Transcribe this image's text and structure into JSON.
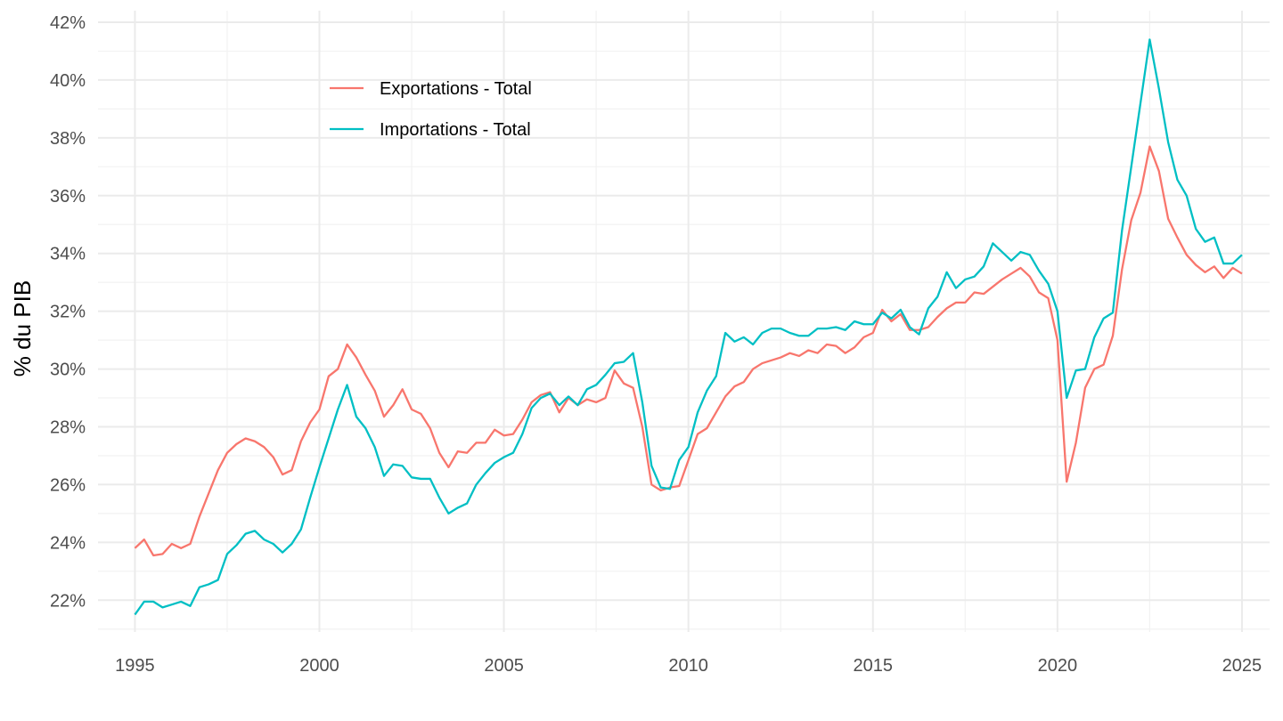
{
  "chart_data": {
    "type": "line",
    "title": "",
    "xlabel": "",
    "ylabel": "% du PIB",
    "xlim": [
      1994.0,
      2025.75
    ],
    "ylim": [
      20.9,
      42.4
    ],
    "x_ticks": [
      1995,
      2000,
      2005,
      2010,
      2015,
      2020,
      2025
    ],
    "x_tick_labels": [
      "1995",
      "2000",
      "2005",
      "2010",
      "2015",
      "2020",
      "2025"
    ],
    "y_ticks": [
      22,
      24,
      26,
      28,
      30,
      32,
      34,
      36,
      38,
      40,
      42
    ],
    "y_tick_labels": [
      "22%",
      "24%",
      "26%",
      "28%",
      "30%",
      "32%",
      "34%",
      "36%",
      "38%",
      "40%",
      "42%"
    ],
    "grid": true,
    "legend_position": "top-left inside",
    "x": [
      1995.0,
      1995.25,
      1995.5,
      1995.75,
      1996.0,
      1996.25,
      1996.5,
      1996.75,
      1997.0,
      1997.25,
      1997.5,
      1997.75,
      1998.0,
      1998.25,
      1998.5,
      1998.75,
      1999.0,
      1999.25,
      1999.5,
      1999.75,
      2000.0,
      2000.25,
      2000.5,
      2000.75,
      2001.0,
      2001.25,
      2001.5,
      2001.75,
      2002.0,
      2002.25,
      2002.5,
      2002.75,
      2003.0,
      2003.25,
      2003.5,
      2003.75,
      2004.0,
      2004.25,
      2004.5,
      2004.75,
      2005.0,
      2005.25,
      2005.5,
      2005.75,
      2006.0,
      2006.25,
      2006.5,
      2006.75,
      2007.0,
      2007.25,
      2007.5,
      2007.75,
      2008.0,
      2008.25,
      2008.5,
      2008.75,
      2009.0,
      2009.25,
      2009.5,
      2009.75,
      2010.0,
      2010.25,
      2010.5,
      2010.75,
      2011.0,
      2011.25,
      2011.5,
      2011.75,
      2012.0,
      2012.25,
      2012.5,
      2012.75,
      2013.0,
      2013.25,
      2013.5,
      2013.75,
      2014.0,
      2014.25,
      2014.5,
      2014.75,
      2015.0,
      2015.25,
      2015.5,
      2015.75,
      2016.0,
      2016.25,
      2016.5,
      2016.75,
      2017.0,
      2017.25,
      2017.5,
      2017.75,
      2018.0,
      2018.25,
      2018.5,
      2018.75,
      2019.0,
      2019.25,
      2019.5,
      2019.75,
      2020.0,
      2020.25,
      2020.5,
      2020.75,
      2021.0,
      2021.25,
      2021.5,
      2021.75,
      2022.0,
      2022.25,
      2022.5,
      2022.75,
      2023.0,
      2023.25,
      2023.5,
      2023.75,
      2024.0,
      2024.25,
      2024.5,
      2024.75,
      2025.0
    ],
    "series": [
      {
        "name": "Exportations - Total",
        "color": "#f8766d",
        "values": [
          23.8,
          24.1,
          23.55,
          23.6,
          23.95,
          23.8,
          23.95,
          24.9,
          25.7,
          26.5,
          27.1,
          27.4,
          27.6,
          27.5,
          27.3,
          26.95,
          26.35,
          26.5,
          27.5,
          28.15,
          28.6,
          29.75,
          30.0,
          30.85,
          30.4,
          29.8,
          29.25,
          28.35,
          28.75,
          29.3,
          28.6,
          28.45,
          27.95,
          27.1,
          26.6,
          27.15,
          27.1,
          27.45,
          27.45,
          27.9,
          27.7,
          27.75,
          28.25,
          28.85,
          29.1,
          29.2,
          28.5,
          29.0,
          28.75,
          28.95,
          28.85,
          29.0,
          29.95,
          29.5,
          29.35,
          28.0,
          26.0,
          25.8,
          25.9,
          25.95,
          26.85,
          27.75,
          27.95,
          28.5,
          29.05,
          29.4,
          29.55,
          30.0,
          30.2,
          30.3,
          30.4,
          30.55,
          30.45,
          30.65,
          30.55,
          30.85,
          30.8,
          30.55,
          30.75,
          31.1,
          31.25,
          32.05,
          31.65,
          31.9,
          31.35,
          31.35,
          31.45,
          31.8,
          32.1,
          32.3,
          32.3,
          32.65,
          32.6,
          32.85,
          33.1,
          33.3,
          33.5,
          33.2,
          32.65,
          32.45,
          31.0,
          26.1,
          27.45,
          29.35,
          30.0,
          30.15,
          31.15,
          33.45,
          35.15,
          36.1,
          37.7,
          36.85,
          35.2,
          34.55,
          33.95,
          33.6,
          33.35,
          33.55,
          33.15,
          33.5,
          33.3
        ]
      },
      {
        "name": "Importations - Total",
        "color": "#00bfc4",
        "values": [
          21.5,
          21.95,
          21.95,
          21.75,
          21.85,
          21.95,
          21.8,
          22.45,
          22.55,
          22.7,
          23.6,
          23.9,
          24.3,
          24.4,
          24.1,
          23.95,
          23.65,
          23.95,
          24.45,
          25.55,
          26.6,
          27.6,
          28.6,
          29.45,
          28.35,
          27.95,
          27.3,
          26.3,
          26.7,
          26.65,
          26.25,
          26.2,
          26.2,
          25.55,
          25.0,
          25.2,
          25.35,
          26.0,
          26.4,
          26.75,
          26.95,
          27.1,
          27.75,
          28.65,
          29.0,
          29.15,
          28.75,
          29.05,
          28.75,
          29.3,
          29.45,
          29.8,
          30.2,
          30.25,
          30.55,
          28.85,
          26.65,
          25.9,
          25.85,
          26.85,
          27.3,
          28.5,
          29.25,
          29.75,
          31.25,
          30.95,
          31.1,
          30.85,
          31.25,
          31.4,
          31.4,
          31.25,
          31.15,
          31.15,
          31.4,
          31.4,
          31.45,
          31.35,
          31.65,
          31.55,
          31.55,
          31.95,
          31.75,
          32.05,
          31.45,
          31.2,
          32.1,
          32.5,
          33.35,
          32.8,
          33.1,
          33.2,
          33.55,
          34.35,
          34.05,
          33.75,
          34.05,
          33.95,
          33.4,
          32.95,
          32.0,
          29.0,
          29.95,
          30.0,
          31.1,
          31.75,
          31.95,
          34.8,
          37.0,
          39.2,
          41.4,
          39.7,
          37.85,
          36.55,
          36.0,
          34.85,
          34.4,
          34.55,
          33.65,
          33.65,
          33.95
        ]
      }
    ]
  }
}
